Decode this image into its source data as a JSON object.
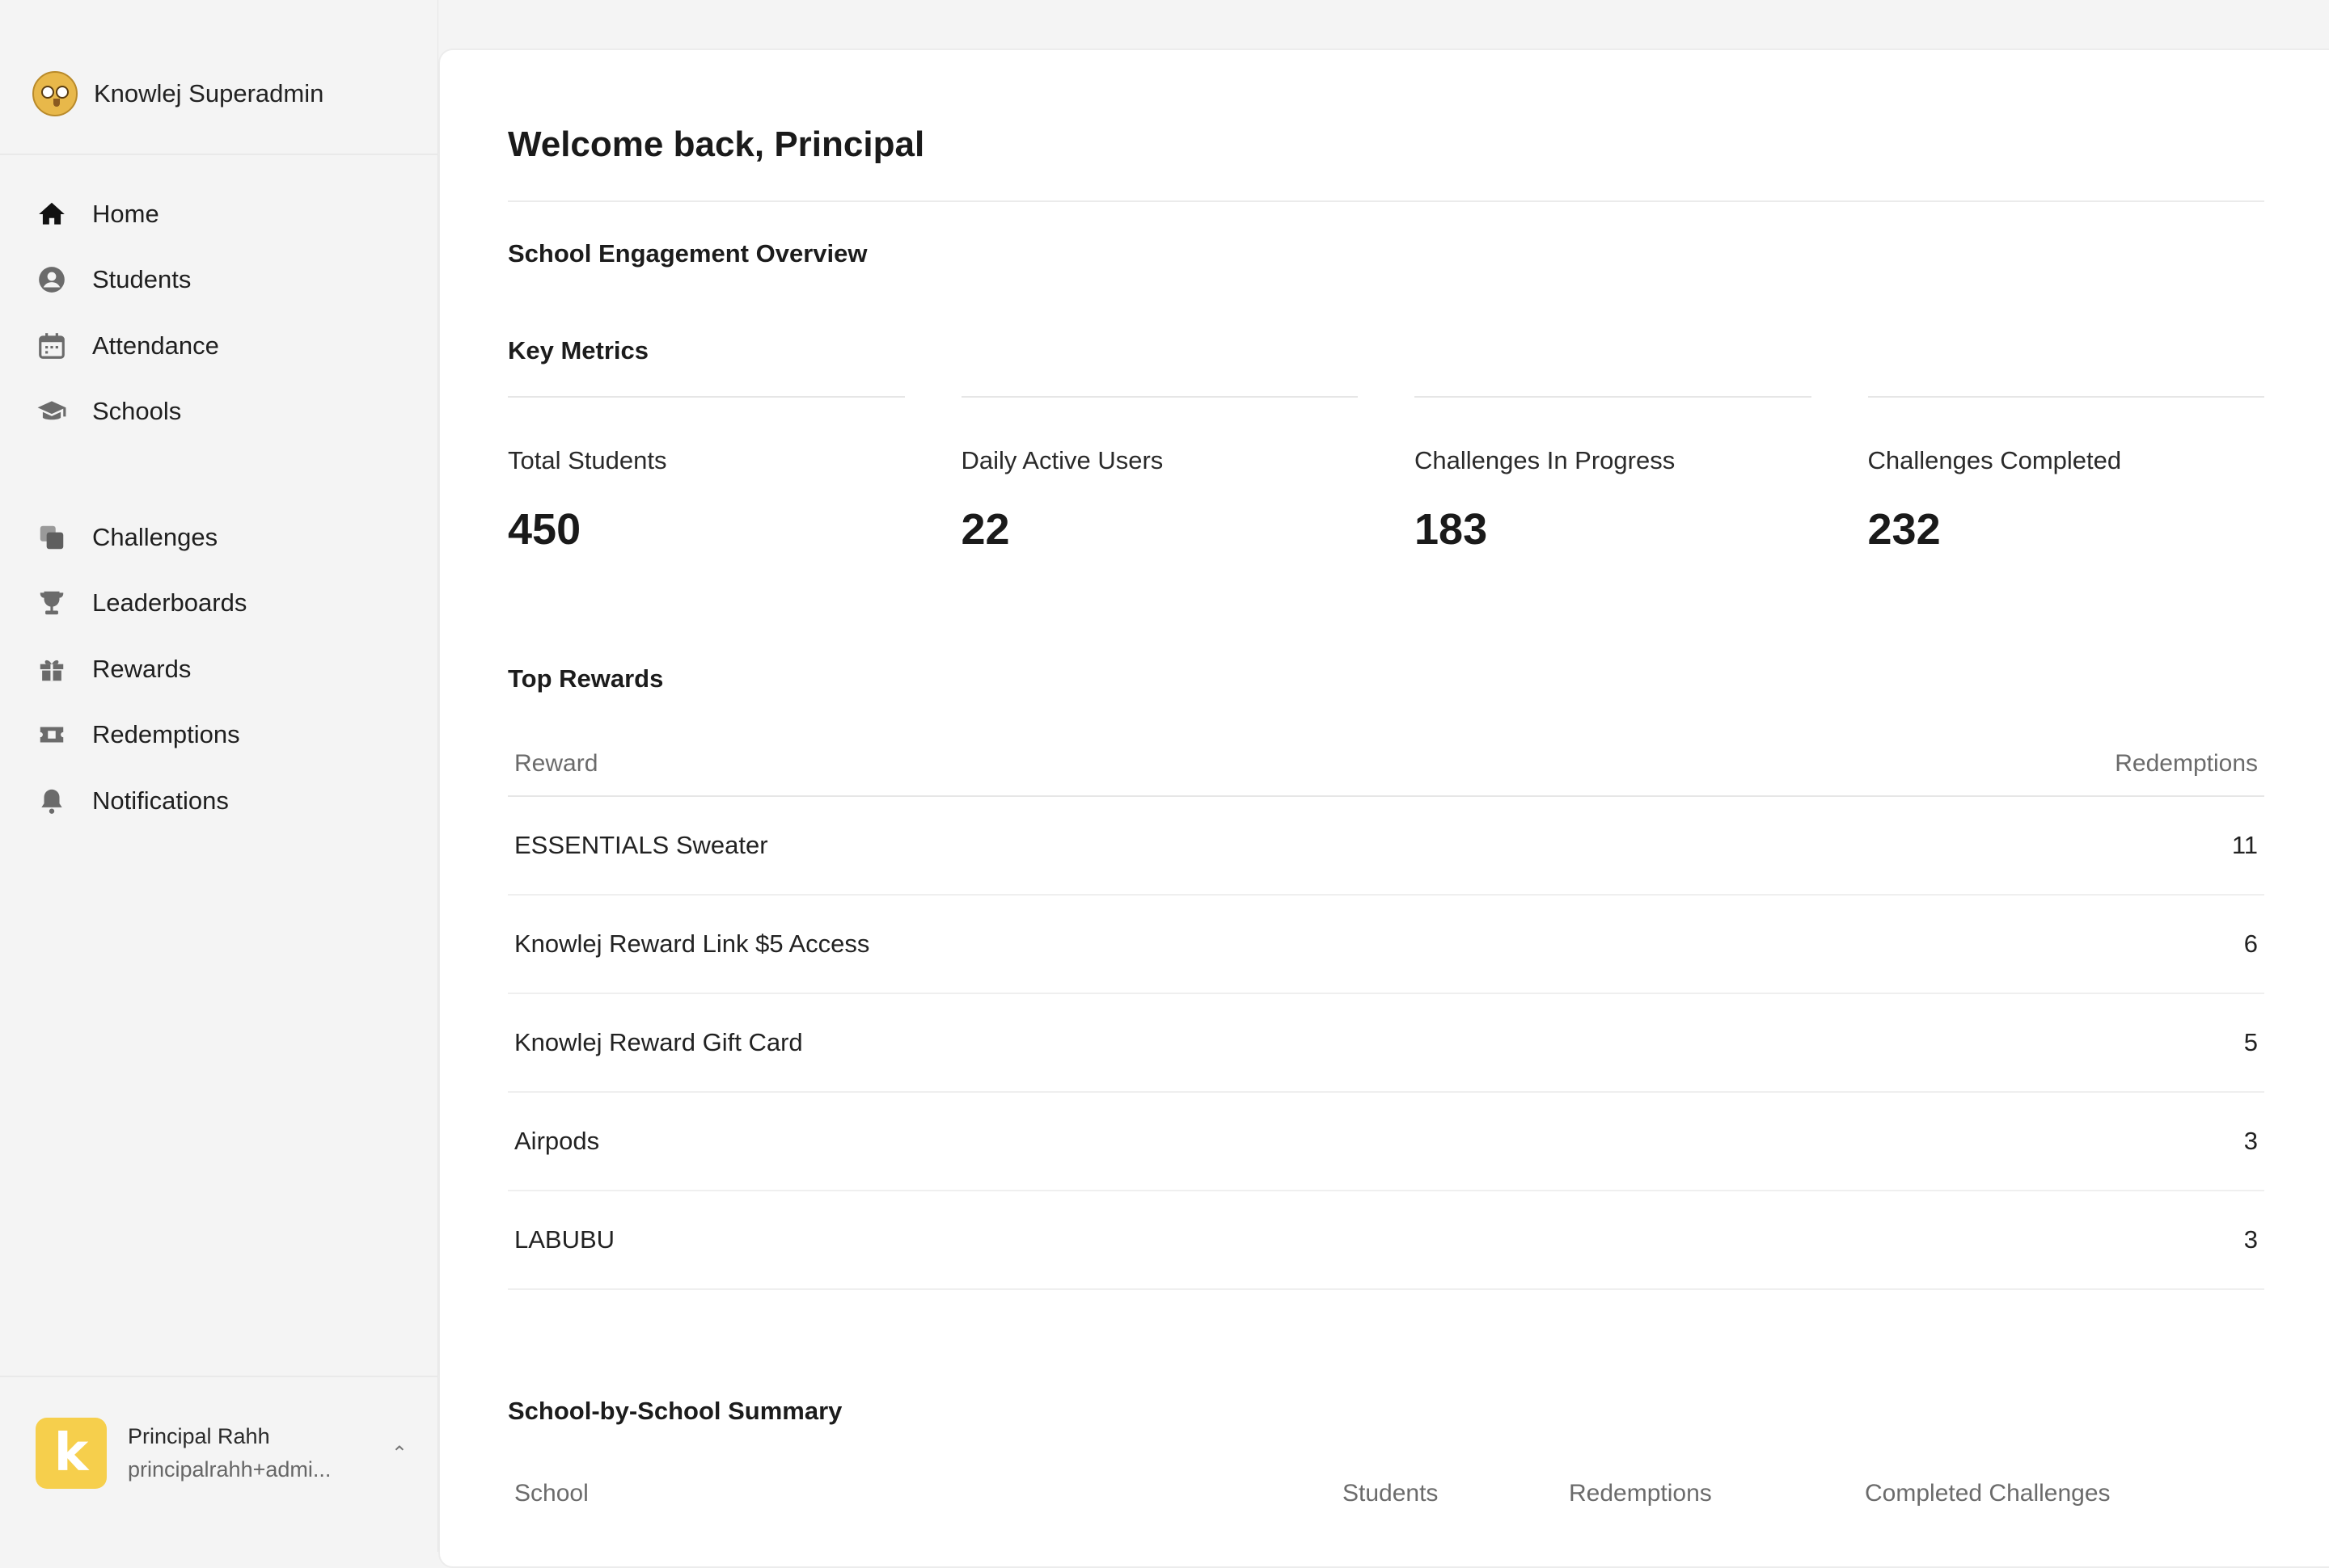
{
  "sidebar": {
    "org_name": "Knowlej Superadmin",
    "primary_nav": [
      {
        "label": "Home",
        "icon": "home-icon"
      },
      {
        "label": "Students",
        "icon": "user-circle-icon"
      },
      {
        "label": "Attendance",
        "icon": "calendar-icon"
      },
      {
        "label": "Schools",
        "icon": "graduation-cap-icon"
      }
    ],
    "secondary_nav": [
      {
        "label": "Challenges",
        "icon": "stacked-squares-icon"
      },
      {
        "label": "Leaderboards",
        "icon": "trophy-icon"
      },
      {
        "label": "Rewards",
        "icon": "gift-icon"
      },
      {
        "label": "Redemptions",
        "icon": "ticket-icon"
      },
      {
        "label": "Notifications",
        "icon": "bell-icon"
      }
    ],
    "user": {
      "avatar_letter": "k",
      "name": "Principal Rahh",
      "email": "principalrahh+admi..."
    }
  },
  "main": {
    "welcome": "Welcome back, Principal",
    "overview_title": "School Engagement Overview",
    "key_metrics_title": "Key Metrics",
    "metrics": [
      {
        "label": "Total Students",
        "value": "450"
      },
      {
        "label": "Daily Active Users",
        "value": "22"
      },
      {
        "label": "Challenges In Progress",
        "value": "183"
      },
      {
        "label": "Challenges Completed",
        "value": "232"
      }
    ],
    "top_rewards": {
      "title": "Top Rewards",
      "columns": [
        "Reward",
        "Redemptions"
      ],
      "rows": [
        {
          "reward": "ESSENTIALS Sweater",
          "redemptions": "11"
        },
        {
          "reward": "Knowlej Reward Link $5 Access",
          "redemptions": "6"
        },
        {
          "reward": "Knowlej Reward Gift Card",
          "redemptions": "5"
        },
        {
          "reward": "Airpods",
          "redemptions": "3"
        },
        {
          "reward": "LABUBU",
          "redemptions": "3"
        }
      ]
    },
    "school_summary": {
      "title": "School-by-School Summary",
      "columns": [
        "School",
        "Students",
        "Redemptions",
        "Completed Challenges"
      ]
    }
  },
  "colors": {
    "avatar_bg": "#f6cf4c",
    "page_bg": "#f4f4f4",
    "card_bg": "#ffffff"
  }
}
